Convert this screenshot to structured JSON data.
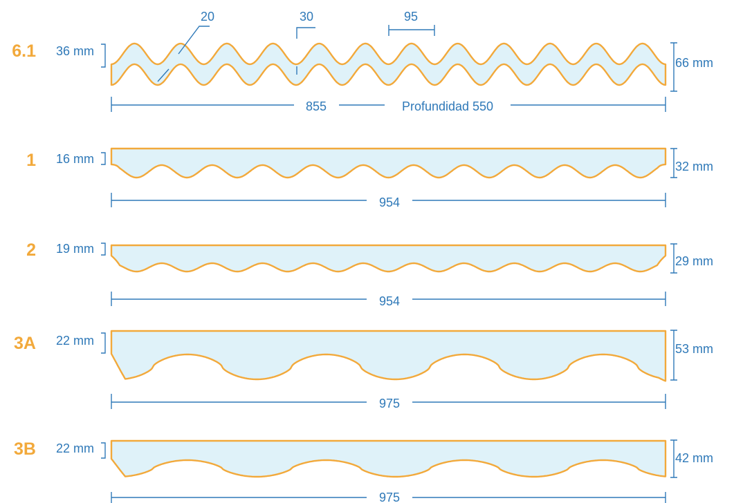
{
  "colors": {
    "accent": "#F2A93B",
    "dimension": "#2F79B8",
    "fill": "#DFF2F9"
  },
  "profiles": [
    {
      "id": "6.1",
      "left_thickness": "36 mm",
      "right_height": "66 mm",
      "wave_count": 12,
      "width_label": "855",
      "depth_label": "Profundidad 550",
      "callouts": [
        "20",
        "30",
        "95"
      ]
    },
    {
      "id": "1",
      "left_thickness": "16 mm",
      "right_height": "32 mm",
      "wave_count": 11,
      "width_label": "954"
    },
    {
      "id": "2",
      "left_thickness": "19 mm",
      "right_height": "29 mm",
      "wave_count": 11,
      "width_label": "954"
    },
    {
      "id": "3A",
      "left_thickness": "22 mm",
      "right_height": "53 mm",
      "wave_count": 4,
      "width_label": "975"
    },
    {
      "id": "3B",
      "left_thickness": "22 mm",
      "right_height": "42 mm",
      "wave_count": 4,
      "width_label": "975"
    }
  ]
}
